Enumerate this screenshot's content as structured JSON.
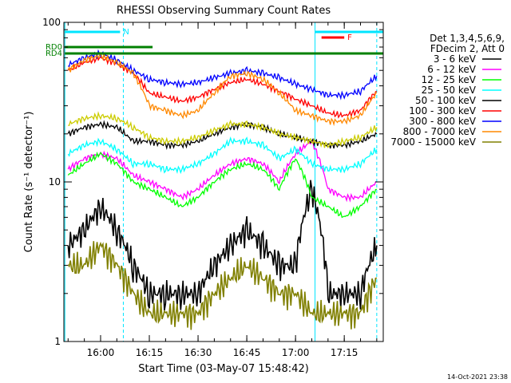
{
  "chart_data": {
    "type": "line",
    "title": "RHESSI Observing Summary Count Rates",
    "xlabel": "Start Time (03-May-07 15:48:42)",
    "ylabel": "Count Rate (s⁻¹ detector⁻¹)",
    "yscale": "log",
    "ylim": [
      1,
      100
    ],
    "xlim": [
      "15:48:42",
      "17:27:00"
    ],
    "x_ticks": [
      "16:00",
      "16:15",
      "16:30",
      "16:45",
      "17:00",
      "17:15"
    ],
    "y_ticks": [
      "1",
      "10",
      "100"
    ],
    "grid": false,
    "legend_position": "right",
    "legend_header": [
      "Det 1,3,4,5,6,9,",
      "FDecim 2, Att 0"
    ],
    "footer_date": "14-Oct-2021 23:38",
    "flag_bars": [
      {
        "label": "N",
        "color": "#00e5ff",
        "segments": [
          [
            "15:49",
            "16:06"
          ],
          [
            "17:06",
            "17:27"
          ]
        ]
      },
      {
        "label": "F",
        "color": "#ff0000",
        "segments": [
          [
            "17:08",
            "17:15"
          ]
        ]
      },
      {
        "label": "RD0",
        "color": "#008000",
        "segments": [
          [
            "15:49",
            "16:16"
          ]
        ]
      },
      {
        "label": "RD4",
        "color": "#008000",
        "segments": [
          [
            "15:49",
            "17:27"
          ]
        ]
      }
    ],
    "vlines": [
      {
        "time": "15:49",
        "style": "solid",
        "color": "#00e5ff"
      },
      {
        "time": "16:07",
        "style": "dashed",
        "color": "#00e5ff"
      },
      {
        "time": "17:06",
        "style": "solid",
        "color": "#00e5ff"
      },
      {
        "time": "17:25",
        "style": "dashed",
        "color": "#00e5ff"
      }
    ],
    "x": [
      "15:50",
      "15:55",
      "16:00",
      "16:05",
      "16:10",
      "16:15",
      "16:20",
      "16:25",
      "16:30",
      "16:35",
      "16:40",
      "16:45",
      "16:50",
      "16:55",
      "17:00",
      "17:05",
      "17:10",
      "17:15",
      "17:20",
      "17:25"
    ],
    "series": [
      {
        "name": "3 - 6 keV",
        "color": "#000000",
        "values": [
          4,
          5,
          7,
          5,
          3,
          2,
          2,
          2,
          2,
          3,
          4,
          5,
          4,
          3,
          3,
          9,
          2,
          2,
          2,
          4
        ]
      },
      {
        "name": "6 - 12 keV",
        "color": "#ff00ff",
        "values": [
          12,
          14,
          15,
          14,
          11,
          10,
          9,
          8,
          9,
          11,
          13,
          14,
          13,
          10,
          15,
          18,
          9,
          8,
          8,
          10
        ]
      },
      {
        "name": "12 - 25 keV",
        "color": "#00ff00",
        "values": [
          11,
          13,
          15,
          13,
          10,
          9,
          8,
          7,
          8,
          10,
          12,
          13,
          12,
          9,
          14,
          8,
          7,
          6,
          7,
          9
        ]
      },
      {
        "name": "25 - 50 keV",
        "color": "#00ffff",
        "values": [
          15,
          17,
          18,
          16,
          13,
          13,
          12,
          12,
          13,
          15,
          18,
          18,
          17,
          14,
          16,
          13,
          12,
          12,
          13,
          16
        ]
      },
      {
        "name": "50 - 100 keV",
        "color": "#000000",
        "values": [
          20,
          22,
          23,
          22,
          18,
          18,
          17,
          17,
          18,
          20,
          22,
          23,
          22,
          20,
          19,
          18,
          17,
          17,
          18,
          20
        ]
      },
      {
        "name": "100 - 300 keV",
        "color": "#ff0000",
        "values": [
          50,
          56,
          60,
          55,
          48,
          36,
          34,
          32,
          34,
          38,
          42,
          44,
          41,
          37,
          33,
          30,
          27,
          26,
          28,
          37
        ]
      },
      {
        "name": "300 - 800 keV",
        "color": "#0000ff",
        "values": [
          54,
          60,
          64,
          58,
          50,
          44,
          42,
          41,
          42,
          45,
          48,
          50,
          48,
          45,
          41,
          38,
          35,
          35,
          37,
          46
        ]
      },
      {
        "name": "800 - 7000 keV",
        "color": "#ff8800",
        "values": [
          50,
          58,
          62,
          56,
          48,
          30,
          28,
          26,
          28,
          36,
          46,
          48,
          44,
          36,
          28,
          26,
          24,
          24,
          26,
          36
        ]
      },
      {
        "name": "7000 - 15000 keV",
        "color": "#808000",
        "values": [
          3,
          3,
          4,
          3,
          2,
          1.5,
          1.5,
          1.5,
          1.5,
          2,
          2.5,
          3,
          2.5,
          2,
          2,
          1.5,
          1.5,
          1.5,
          1.5,
          2.5
        ]
      },
      {
        "name": "",
        "color": "#cccc00",
        "values": [
          23,
          25,
          26,
          25,
          22,
          19,
          18,
          18,
          19,
          21,
          23,
          23,
          22,
          20,
          19,
          18,
          17,
          18,
          19,
          22
        ]
      }
    ]
  }
}
